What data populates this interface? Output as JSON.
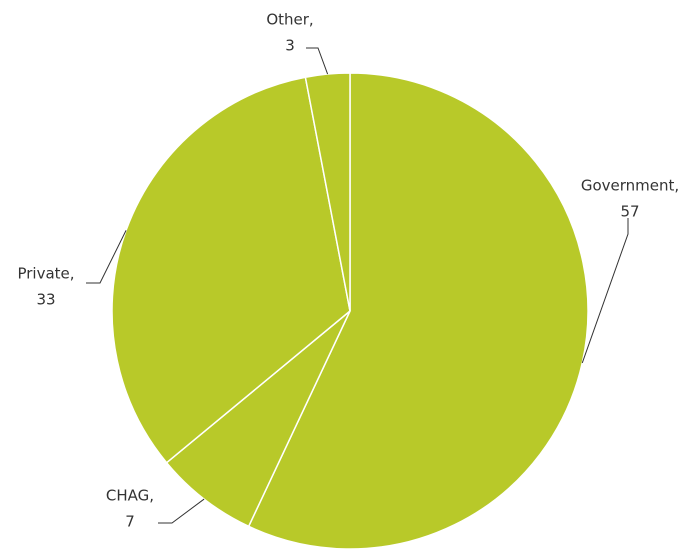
{
  "chart_data": {
    "type": "pie",
    "categories": [
      "Government,",
      "CHAG,",
      "Private,",
      "Other,"
    ],
    "values": [
      57,
      7,
      33,
      3
    ],
    "color": "#b8c929"
  }
}
